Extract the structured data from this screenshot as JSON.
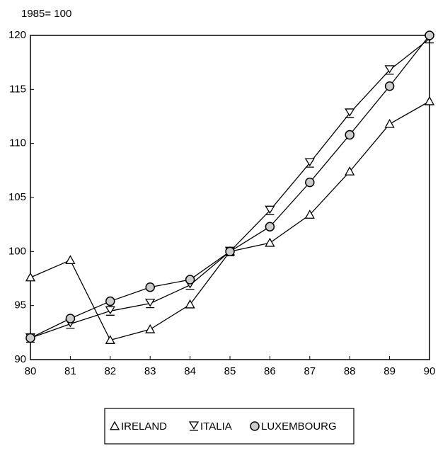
{
  "chart_data": {
    "type": "line",
    "y_label": "1985= 100",
    "x": [
      80,
      81,
      82,
      83,
      84,
      85,
      86,
      87,
      88,
      89,
      90
    ],
    "xlim": [
      80,
      90
    ],
    "xticks": [
      80,
      81,
      82,
      83,
      84,
      85,
      86,
      87,
      88,
      89,
      90
    ],
    "ylim": [
      90,
      120
    ],
    "yticks": [
      90,
      95,
      100,
      105,
      110,
      115,
      120
    ],
    "series": [
      {
        "name": "IRELAND",
        "color": "#000000",
        "marker": "triangle",
        "values": [
          97.6,
          99.2,
          91.8,
          92.8,
          95.1,
          100,
          100.8,
          103.4,
          107.4,
          111.8,
          113.9
        ]
      },
      {
        "name": "ITALIA",
        "color": "#000000",
        "marker": "hourglass",
        "values": [
          92.0,
          93.3,
          94.5,
          95.2,
          96.9,
          100,
          103.8,
          108.2,
          112.8,
          116.8,
          119.7
        ]
      },
      {
        "name": "LUXEMBOURG",
        "color": "#000000",
        "marker": "circle",
        "values": [
          92.0,
          93.8,
          95.4,
          96.7,
          97.4,
          100,
          102.3,
          106.4,
          110.8,
          115.3,
          120.0
        ]
      }
    ]
  }
}
